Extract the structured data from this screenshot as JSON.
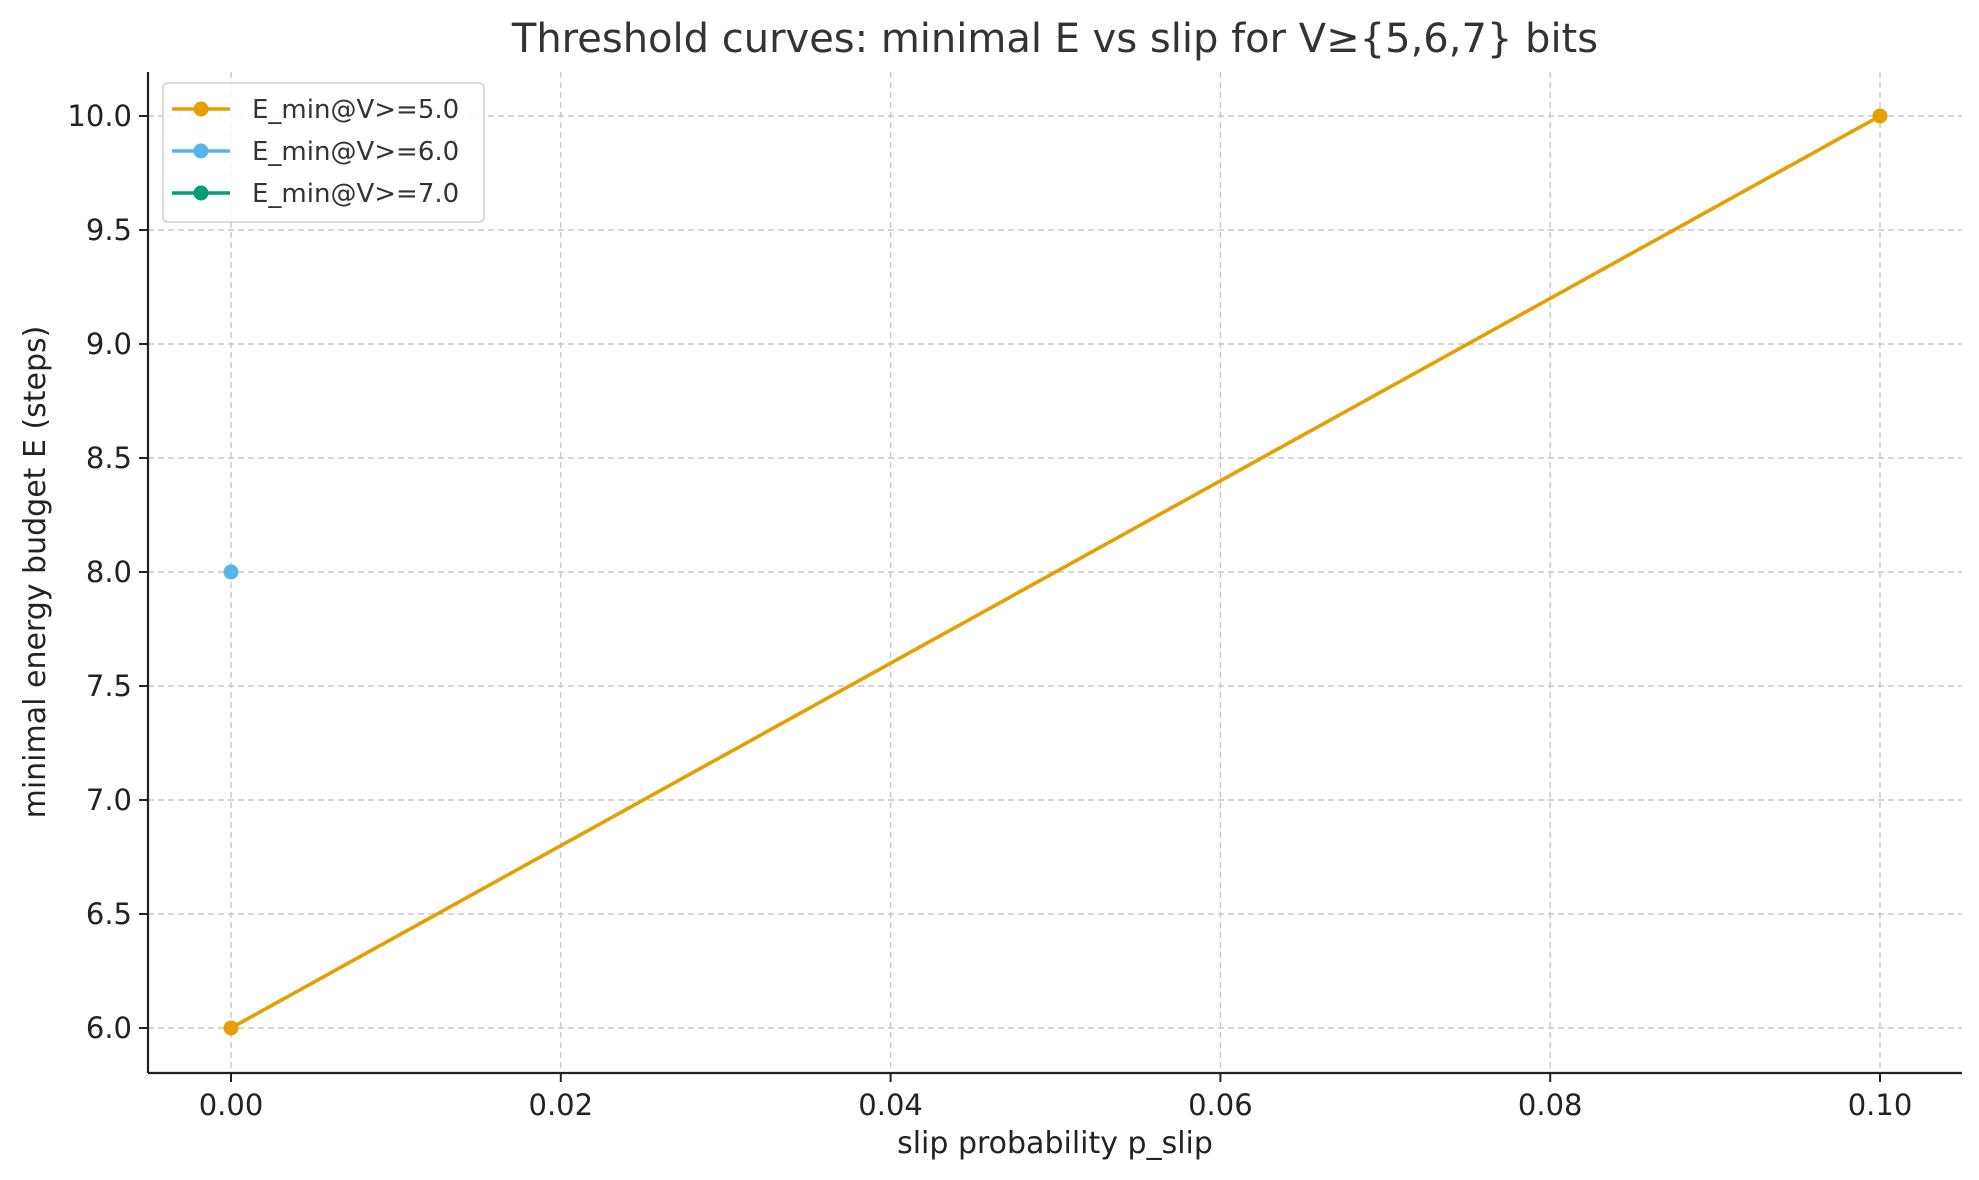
{
  "chart_data": {
    "type": "line",
    "title": "Threshold curves: minimal E vs slip for V≥{5,6,7} bits",
    "xlabel": "slip probability p_slip",
    "ylabel": "minimal energy budget E (steps)",
    "xlim": [
      -0.005,
      0.105
    ],
    "ylim": [
      5.8,
      10.2
    ],
    "x_ticks": [
      0.0,
      0.02,
      0.04,
      0.06,
      0.08,
      0.1
    ],
    "x_tick_labels": [
      "0.00",
      "0.02",
      "0.04",
      "0.06",
      "0.08",
      "0.10"
    ],
    "y_ticks": [
      6.0,
      6.5,
      7.0,
      7.5,
      8.0,
      8.5,
      9.0,
      9.5,
      10.0
    ],
    "y_tick_labels": [
      "6.0",
      "6.5",
      "7.0",
      "7.5",
      "8.0",
      "8.5",
      "9.0",
      "9.5",
      "10.0"
    ],
    "grid": true,
    "legend_position": "top-left",
    "series": [
      {
        "name": "E_min@V>=5.0",
        "color": "#E69F00",
        "points": [
          {
            "x": 0.0,
            "y": 6.0
          },
          {
            "x": 0.1,
            "y": 10.0
          }
        ]
      },
      {
        "name": "E_min@V>=6.0",
        "color": "#56B4E9",
        "points": [
          {
            "x": 0.0,
            "y": 8.0
          }
        ]
      },
      {
        "name": "E_min@V>=7.0",
        "color": "#009E73",
        "points": []
      }
    ]
  }
}
